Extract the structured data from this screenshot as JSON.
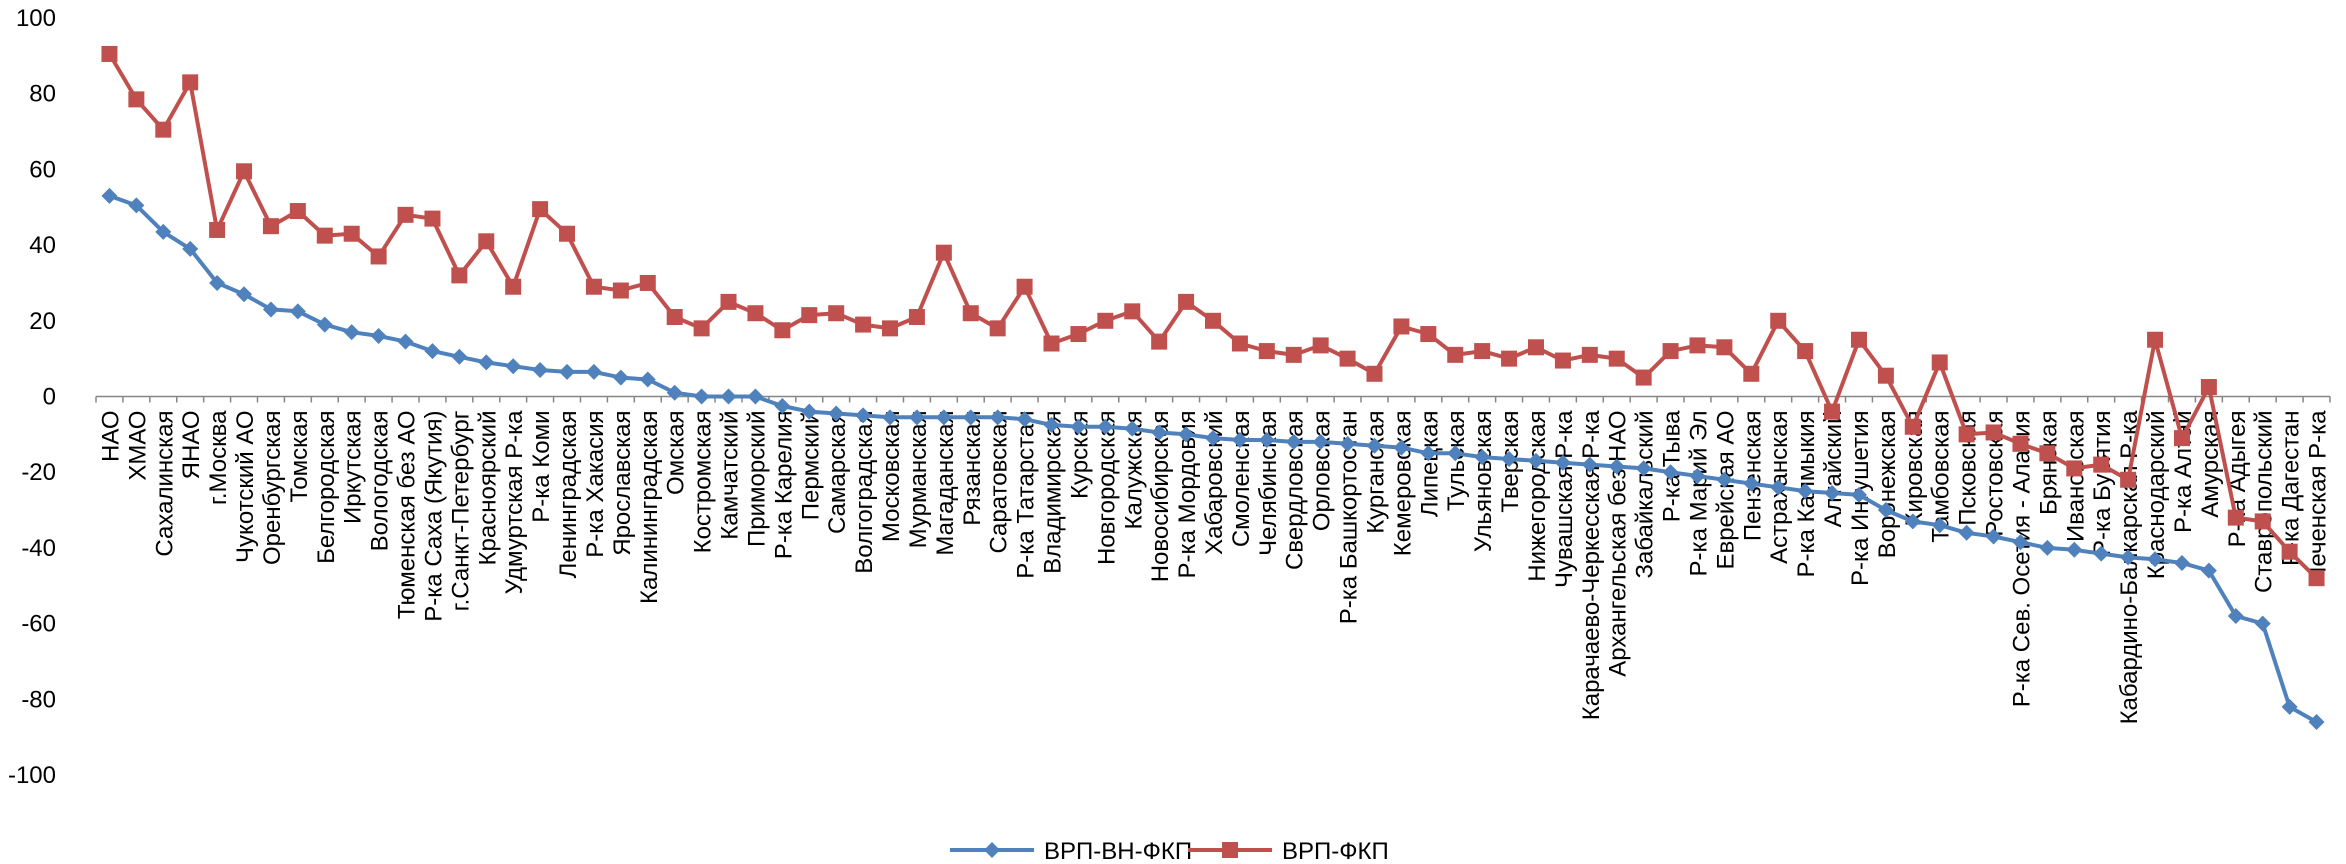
{
  "chart_data": {
    "type": "line",
    "title": "",
    "xlabel": "",
    "ylabel": "",
    "ylim": [
      -100,
      100
    ],
    "yticks": [
      -100,
      -80,
      -60,
      -40,
      -20,
      0,
      20,
      40,
      60,
      80,
      100
    ],
    "grid": false,
    "legend": "bottom",
    "categories": [
      "НАО",
      "ХМАО",
      "Сахалинская",
      "ЯНАО",
      "г.Москва",
      "Чукотский АО",
      "Оренбургская",
      "Томская",
      "Белгородская",
      "Иркутская",
      "Вологодская",
      "Тюменская без АО",
      "Р-ка Саха (Якутия)",
      "г.Санкт-Петербург",
      "Красноярский",
      "Удмуртская Р-ка",
      "Р-ка Коми",
      "Ленинградская",
      "Р-ка Хакасия",
      "Ярославская",
      "Калининградская",
      "Омская",
      "Костромская",
      "Камчатский",
      "Приморский",
      "Р-ка Карелия",
      "Пермский",
      "Самарская",
      "Волгоградская",
      "Московская",
      "Мурманская",
      "Магаданская",
      "Рязанская",
      "Саратовская",
      "Р-ка Татарстан",
      "Владимирская",
      "Курская",
      "Новгородская",
      "Калужская",
      "Новосибирская",
      "Р-ка Мордовия",
      "Хабаровский",
      "Смоленская",
      "Челябинская",
      "Свердловская",
      "Орловская",
      "Р-ка Башкортостан",
      "Курганская",
      "Кемеровская",
      "Липецкая",
      "Тульская",
      "Ульяновская",
      "Тверская",
      "Нижегородская",
      "Чувашская Р-ка",
      "Карачаево-Черкесская Р-ка",
      "Архангельская без НАО",
      "Забайкальский",
      "Р-ка Тыва",
      "Р-ка Марий Эл",
      "Еврейская АО",
      "Пензенская",
      "Астраханская",
      "Р-ка Калмыкия",
      "Алтайский",
      "Р-ка Ингушетия",
      "Воронежская",
      "Кировская",
      "Тамбовская",
      "Псковская",
      "Ростовская",
      "Р-ка Сев. Осетия - Алания",
      "Брянская",
      "Ивановская",
      "Р-ка Бурятия",
      "Кабардино-Балкарская Р-ка",
      "Краснодарский",
      "Р-ка Алтай",
      "Амурская",
      "Р-ка Адыгея",
      "Ставропольский",
      "Р-ка Дагестан",
      "Чеченская Р-ка"
    ],
    "series": [
      {
        "name": "ВРП-ВН-ФКП",
        "color": "#4f81bd",
        "marker": "diamond",
        "values": [
          53,
          50.5,
          43.5,
          39,
          30,
          27,
          23,
          22.5,
          19,
          17,
          16,
          14.5,
          12,
          10.5,
          9,
          8,
          7,
          6.5,
          6.5,
          5,
          4.5,
          1,
          0,
          0,
          0,
          -2.5,
          -4,
          -4.5,
          -5,
          -5.5,
          -5.5,
          -5.5,
          -5.5,
          -5.5,
          -6,
          -7.5,
          -8,
          -8,
          -8.5,
          -9.5,
          -10,
          -11,
          -11.5,
          -11.5,
          -12,
          -12,
          -12.5,
          -13,
          -13.5,
          -15,
          -15,
          -16,
          -16.5,
          -17,
          -17.5,
          -18,
          -18.5,
          -19,
          -20,
          -21,
          -22,
          -23,
          -24,
          -25,
          -25.5,
          -26,
          -30,
          -33,
          -34,
          -36,
          -37,
          -38.5,
          -40,
          -40.5,
          -41.5,
          -42.5,
          -43,
          -44,
          -46,
          -58,
          -60,
          -82,
          -86
        ]
      },
      {
        "name": "ВРП-ФКП",
        "color": "#c0504d",
        "marker": "square",
        "values": [
          90.5,
          78.5,
          70.5,
          83,
          44,
          59.5,
          45,
          49,
          42.5,
          43,
          37,
          48,
          47,
          32,
          41,
          29,
          49.5,
          43,
          29,
          28,
          30,
          21,
          18,
          25,
          22,
          17.5,
          21.5,
          22,
          19,
          18,
          21,
          38,
          22,
          18,
          29,
          14,
          16.5,
          20,
          22.5,
          14.5,
          25,
          20,
          14,
          12,
          11,
          13.5,
          10,
          6,
          18.5,
          16.5,
          11,
          12,
          10,
          13,
          9.5,
          11,
          10,
          5,
          12,
          13.5,
          13,
          6,
          20,
          12,
          -4,
          15,
          5.5,
          -8,
          9,
          -10,
          -9.5,
          -12.5,
          -15,
          -19,
          -18,
          -22,
          15,
          -11,
          2.5,
          -32,
          -33,
          -41,
          -48
        ]
      }
    ]
  }
}
